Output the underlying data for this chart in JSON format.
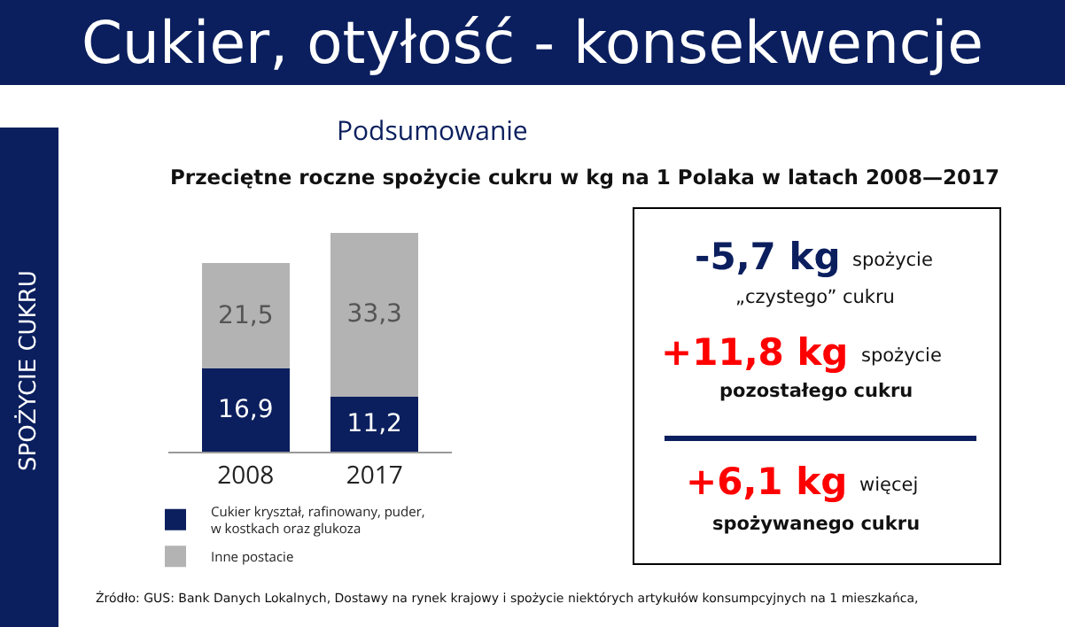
{
  "chart_data": {
    "type": "bar",
    "title": "Cukier, otyłość - konsekwencje",
    "subtitle": "Podsumowanie",
    "categories": [
      "2008",
      "2017"
    ],
    "stacked": true,
    "legend": "bottom left",
    "series": [
      {
        "name": "Cukier kryształ, rafinowany, puder, w kostkach oraz glukoza",
        "color": "#0b1f5e",
        "values": [
          16.9,
          11.2
        ],
        "value_labels": [
          "16,9",
          "11,2"
        ]
      },
      {
        "name": "Inne postacie",
        "color": "#b3b3b3",
        "values": [
          21.5,
          33.3
        ],
        "value_labels": [
          "21,5",
          "33,3"
        ]
      }
    ],
    "annotations": [
      "Przeciętne roczne spożycie cukru w kg na 1 Polaka w latach 2008—2017",
      "SPOŻYCIE CUKRU",
      "-5,7 kg",
      "spożycie",
      "„czystego” cukru",
      "+11,8 kg",
      "spożycie",
      "pozostałego cukru",
      "+6,1 kg",
      "więcej",
      "spożywanego cukru",
      "Źródło: GUS: Bank Danych Lokalnych, Dostawy na rynek krajowy i spożycie niektórych artykułów konsumpcyjnych na 1 mieszkańca,"
    ]
  }
}
